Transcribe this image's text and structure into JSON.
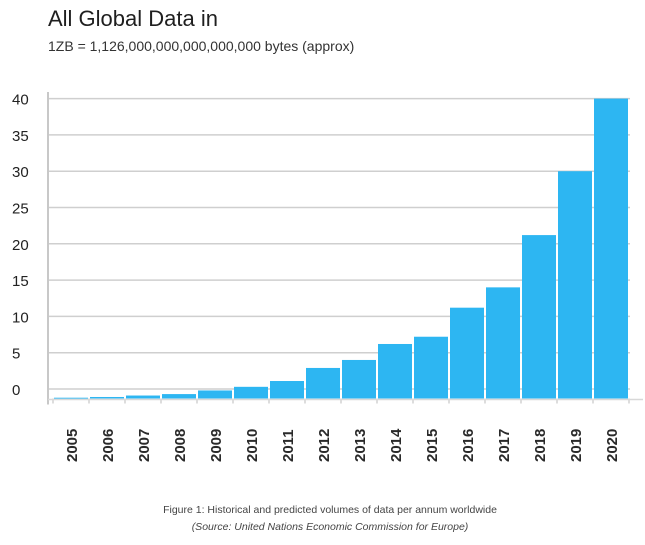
{
  "chart_data": {
    "type": "bar",
    "title": "All Global Data in",
    "subtitle": "1ZB = 1,126,000,000,000,000,000 bytes (approx)",
    "xlabel": "",
    "ylabel": "",
    "categories": [
      "2005",
      "2006",
      "2007",
      "2008",
      "2009",
      "2010",
      "2011",
      "2012",
      "2013",
      "2014",
      "2015",
      "2016",
      "2017",
      "2018",
      "2019",
      "2020"
    ],
    "values": [
      -1.2,
      -1.1,
      -0.9,
      -0.7,
      -0.2,
      0.3,
      1.1,
      2.9,
      4.0,
      6.2,
      7.2,
      11.2,
      14.0,
      21.2,
      30,
      40
    ],
    "yticks": [
      "0",
      "5",
      "10",
      "15",
      "20",
      "25",
      "30",
      "35",
      "40"
    ],
    "ylim": [
      -1.3,
      40
    ],
    "grid": true,
    "bar_color": "#2db6f2",
    "grid_color": "#cfcfcf"
  },
  "caption": {
    "figure": "Figure 1: Historical and predicted volumes of data per annum worldwide",
    "source": "(Source: United Nations Economic Commission for Europe)"
  }
}
